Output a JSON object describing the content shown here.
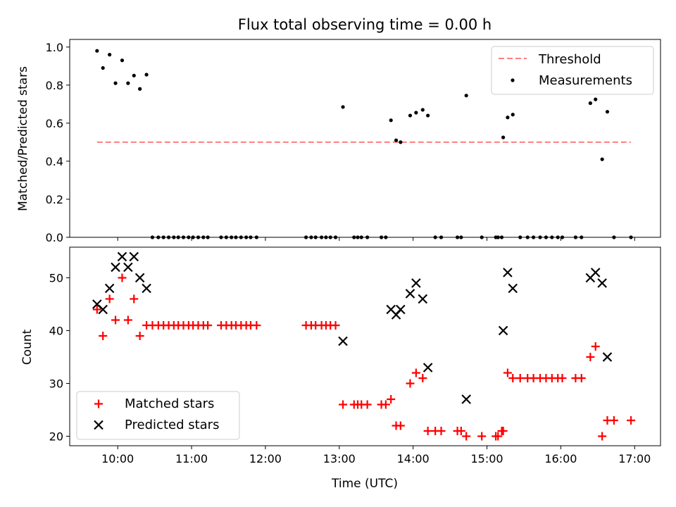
{
  "chart_data": [
    {
      "type": "scatter",
      "title": "Flux total observing time = 0.00 h",
      "xlabel": "",
      "ylabel": "Matched/Predicted stars",
      "xlim": [
        9.35,
        17.35
      ],
      "ylim": [
        0.0,
        1.04
      ],
      "xticks": [
        10,
        11,
        12,
        13,
        14,
        15,
        16,
        17
      ],
      "xtick_labels": [
        "",
        "",
        "",
        "",
        "",
        "",
        "",
        ""
      ],
      "yticks": [
        0.0,
        0.2,
        0.4,
        0.6,
        0.8,
        1.0
      ],
      "ytick_labels": [
        "0.0",
        "0.2",
        "0.4",
        "0.6",
        "0.8",
        "1.0"
      ],
      "legend": {
        "position": "top-right",
        "entries": [
          "Threshold",
          "Measurements"
        ]
      },
      "series": [
        {
          "name": "Threshold",
          "kind": "line",
          "color": "#ff7f7f",
          "dash": "dashed",
          "x": [
            9.72,
            16.95
          ],
          "y": [
            0.5,
            0.5
          ]
        },
        {
          "name": "Measurements",
          "kind": "scatter",
          "color": "#000000",
          "x": [
            9.72,
            9.8,
            9.89,
            9.97,
            10.06,
            10.14,
            10.22,
            10.3,
            10.39,
            10.47,
            10.55,
            10.62,
            10.69,
            10.76,
            10.82,
            10.89,
            10.96,
            11.02,
            11.09,
            11.16,
            11.22,
            11.4,
            11.47,
            11.54,
            11.6,
            11.67,
            11.74,
            11.8,
            11.88,
            12.55,
            12.62,
            12.68,
            12.76,
            12.82,
            12.88,
            12.95,
            13.05,
            13.2,
            13.25,
            13.3,
            13.38,
            13.57,
            13.63,
            13.7,
            13.77,
            13.83,
            13.96,
            14.04,
            14.13,
            14.2,
            14.3,
            14.38,
            14.6,
            14.65,
            14.72,
            14.93,
            15.12,
            15.15,
            15.2,
            15.22,
            15.28,
            15.35,
            15.45,
            15.55,
            15.63,
            15.72,
            15.8,
            15.88,
            15.96,
            16.02,
            16.2,
            16.28,
            16.4,
            16.47,
            16.56,
            16.63,
            16.72,
            16.95
          ],
          "y": [
            0.98,
            0.89,
            0.96,
            0.81,
            0.93,
            0.81,
            0.85,
            0.78,
            0.855,
            0,
            0,
            0,
            0,
            0,
            0,
            0,
            0,
            0,
            0,
            0,
            0,
            0,
            0,
            0,
            0,
            0,
            0,
            0,
            0,
            0,
            0,
            0,
            0,
            0,
            0,
            0,
            0.685,
            0,
            0,
            0,
            0,
            0,
            0,
            0.615,
            0.51,
            0.5,
            0.64,
            0.655,
            0.67,
            0.64,
            0,
            0,
            0,
            0,
            0.745,
            0,
            0,
            0,
            0,
            0.525,
            0.63,
            0.645,
            0,
            0,
            0,
            0,
            0,
            0,
            0,
            0,
            0,
            0,
            0.705,
            0.725,
            0.41,
            0.66,
            0,
            0
          ]
        }
      ]
    },
    {
      "type": "scatter",
      "title": "",
      "xlabel": "Time (UTC)",
      "ylabel": "Count",
      "xlim": [
        9.35,
        17.35
      ],
      "ylim": [
        18.2,
        55.8
      ],
      "xticks": [
        10,
        11,
        12,
        13,
        14,
        15,
        16,
        17
      ],
      "xtick_labels": [
        "10:00",
        "11:00",
        "12:00",
        "13:00",
        "14:00",
        "15:00",
        "16:00",
        "17:00"
      ],
      "yticks": [
        20,
        30,
        40,
        50
      ],
      "ytick_labels": [
        "20",
        "30",
        "40",
        "50"
      ],
      "legend": {
        "position": "bottom-left",
        "entries": [
          "Matched stars",
          "Predicted stars"
        ]
      },
      "series": [
        {
          "name": "Matched stars",
          "kind": "scatter",
          "marker": "plus",
          "color": "#ff0000",
          "x": [
            9.72,
            9.8,
            9.89,
            9.97,
            10.06,
            10.14,
            10.22,
            10.3,
            10.39,
            10.47,
            10.55,
            10.62,
            10.69,
            10.76,
            10.82,
            10.89,
            10.96,
            11.02,
            11.09,
            11.16,
            11.22,
            11.4,
            11.47,
            11.54,
            11.6,
            11.67,
            11.74,
            11.8,
            11.88,
            12.55,
            12.62,
            12.68,
            12.76,
            12.82,
            12.88,
            12.95,
            13.05,
            13.2,
            13.25,
            13.3,
            13.38,
            13.57,
            13.63,
            13.7,
            13.77,
            13.83,
            13.96,
            14.04,
            14.13,
            14.2,
            14.3,
            14.38,
            14.6,
            14.65,
            14.72,
            14.93,
            15.12,
            15.15,
            15.2,
            15.22,
            15.28,
            15.35,
            15.45,
            15.55,
            15.63,
            15.72,
            15.8,
            15.88,
            15.96,
            16.02,
            16.2,
            16.28,
            16.4,
            16.47,
            16.56,
            16.63,
            16.72,
            16.95
          ],
          "y": [
            44,
            39,
            46,
            42,
            50,
            42,
            46,
            39,
            41,
            41,
            41,
            41,
            41,
            41,
            41,
            41,
            41,
            41,
            41,
            41,
            41,
            41,
            41,
            41,
            41,
            41,
            41,
            41,
            41,
            41,
            41,
            41,
            41,
            41,
            41,
            41,
            26,
            26,
            26,
            26,
            26,
            26,
            26,
            27,
            22,
            22,
            30,
            32,
            31,
            21,
            21,
            21,
            21,
            21,
            20,
            20,
            20,
            20,
            21,
            21,
            32,
            31,
            31,
            31,
            31,
            31,
            31,
            31,
            31,
            31,
            31,
            31,
            35,
            37,
            20,
            23,
            23,
            23
          ]
        },
        {
          "name": "Predicted stars",
          "kind": "scatter",
          "marker": "x",
          "color": "#000000",
          "x": [
            9.72,
            9.8,
            9.89,
            9.97,
            10.06,
            10.14,
            10.22,
            10.3,
            10.39,
            13.05,
            13.7,
            13.77,
            13.83,
            13.96,
            14.04,
            14.13,
            14.2,
            14.72,
            15.22,
            15.28,
            15.35,
            16.4,
            16.47,
            16.56,
            16.63
          ],
          "y": [
            45,
            44,
            48,
            52,
            54,
            52,
            54,
            50,
            48,
            38,
            44,
            43,
            44,
            47,
            49,
            46,
            33,
            27,
            40,
            51,
            48,
            50,
            51,
            49,
            35
          ]
        }
      ]
    }
  ]
}
